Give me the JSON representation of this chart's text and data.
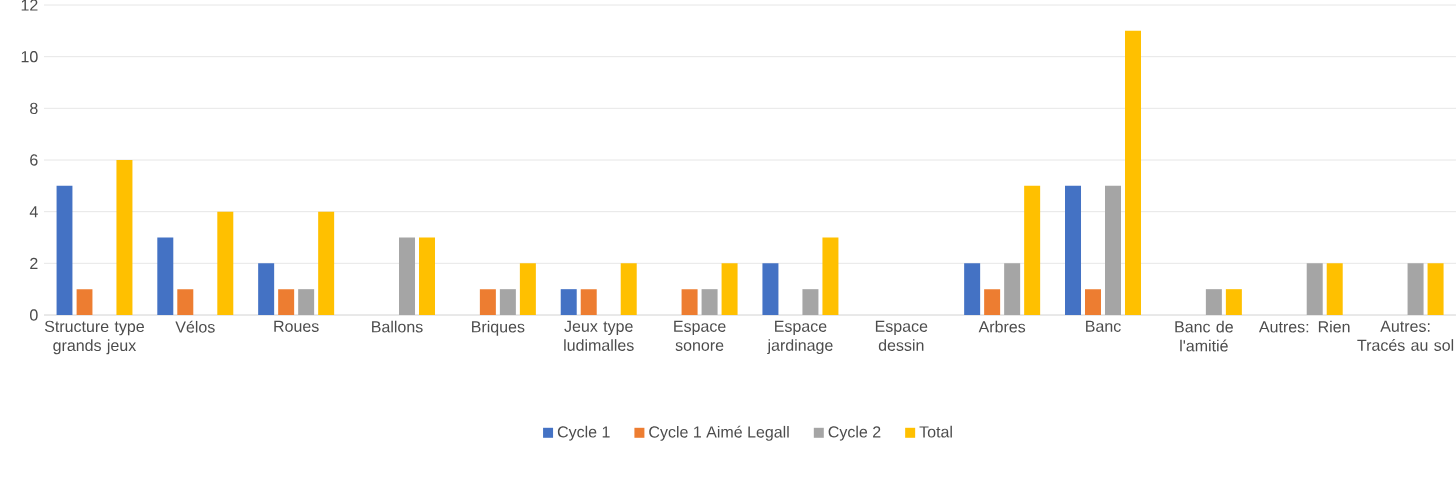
{
  "chart_data": {
    "type": "bar",
    "categories": [
      "Structure type grands jeux",
      "Vélos",
      "Roues",
      "Ballons",
      "Briques",
      "Jeux type ludimalles",
      "Espace sonore",
      "Espace jardinage",
      "Espace dessin",
      "Arbres",
      "Banc",
      "Banc de l'amitié",
      "Autres: Rien",
      "Autres: Tracés au sol"
    ],
    "series": [
      {
        "name": "Cycle 1",
        "color": "#4472c4",
        "values": [
          5,
          3,
          2,
          0,
          0,
          1,
          0,
          2,
          0,
          2,
          5,
          0,
          0,
          0
        ]
      },
      {
        "name": "Cycle 1 Aimé Legall",
        "color": "#ed7d31",
        "values": [
          1,
          1,
          1,
          0,
          1,
          1,
          1,
          0,
          0,
          1,
          1,
          0,
          0,
          0
        ]
      },
      {
        "name": "Cycle 2",
        "color": "#a5a5a5",
        "values": [
          0,
          0,
          1,
          3,
          1,
          0,
          1,
          1,
          0,
          2,
          5,
          1,
          2,
          2
        ]
      },
      {
        "name": "Total",
        "color": "#ffc000",
        "values": [
          6,
          4,
          4,
          3,
          2,
          2,
          2,
          3,
          0,
          5,
          11,
          1,
          2,
          2
        ]
      }
    ],
    "ylim": [
      0,
      12
    ],
    "yticks": [
      0,
      2,
      4,
      6,
      8,
      10,
      12
    ],
    "grid": "y",
    "legend": "bottom"
  }
}
